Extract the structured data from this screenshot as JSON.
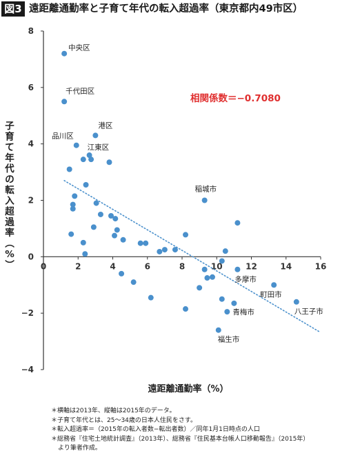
{
  "header": {
    "figure_label": "図3",
    "title": "遠距離通勤率と子育て年代の転入超過率（東京都内49市区）"
  },
  "chart_data": {
    "type": "scatter",
    "xlabel": "遠距離通勤率（%）",
    "ylabel": "子育て年代の転入超過率（%）",
    "xlim": [
      0,
      16
    ],
    "ylim": [
      -4,
      8
    ],
    "x_ticks": [
      0,
      2,
      4,
      6,
      8,
      10,
      12,
      14,
      16
    ],
    "y_ticks": [
      -4,
      -2,
      0,
      2,
      4,
      6,
      8
    ],
    "x_tick_labels": [
      "0",
      "2",
      "4",
      "6",
      "8",
      "10",
      "12",
      "14",
      "16"
    ],
    "y_tick_labels": [
      "−4",
      "−2",
      "0",
      "2",
      "4",
      "6",
      "8"
    ],
    "grid": false,
    "correlation_text": "相関係数＝−0.7080",
    "point_color": "#4a90cc",
    "trend_color": "#4a90cc",
    "correlation_color": "#e03030",
    "trendline": {
      "x": [
        1.2,
        15.9
      ],
      "y": [
        2.7,
        -2.65
      ],
      "style": "dotted"
    },
    "points": [
      {
        "x": 1.2,
        "y": 7.2,
        "label": "中央区"
      },
      {
        "x": 1.2,
        "y": 5.5,
        "label": "千代田区"
      },
      {
        "x": 3.0,
        "y": 4.3,
        "label": "港区"
      },
      {
        "x": 1.9,
        "y": 3.95,
        "label": "品川区"
      },
      {
        "x": 2.65,
        "y": 3.6,
        "label": "江東区"
      },
      {
        "x": 9.3,
        "y": 2.0,
        "label": "稲城市"
      },
      {
        "x": 11.2,
        "y": -0.45,
        "label": "多摩市"
      },
      {
        "x": 13.3,
        "y": -1.0,
        "label": "町田市"
      },
      {
        "x": 14.6,
        "y": -1.6,
        "label": "八王子市"
      },
      {
        "x": 11.0,
        "y": -1.65,
        "label": "青梅市"
      },
      {
        "x": 10.1,
        "y": -2.6,
        "label": "福生市"
      },
      {
        "x": 2.3,
        "y": 3.45,
        "label": ""
      },
      {
        "x": 2.75,
        "y": 3.45,
        "label": ""
      },
      {
        "x": 3.8,
        "y": 3.35,
        "label": ""
      },
      {
        "x": 1.5,
        "y": 3.1,
        "label": ""
      },
      {
        "x": 2.45,
        "y": 2.55,
        "label": ""
      },
      {
        "x": 1.8,
        "y": 2.15,
        "label": ""
      },
      {
        "x": 3.05,
        "y": 1.9,
        "label": ""
      },
      {
        "x": 1.7,
        "y": 1.85,
        "label": ""
      },
      {
        "x": 1.7,
        "y": 1.7,
        "label": ""
      },
      {
        "x": 3.3,
        "y": 1.5,
        "label": ""
      },
      {
        "x": 3.9,
        "y": 1.45,
        "label": ""
      },
      {
        "x": 4.15,
        "y": 1.35,
        "label": ""
      },
      {
        "x": 11.2,
        "y": 1.2,
        "label": ""
      },
      {
        "x": 2.9,
        "y": 1.05,
        "label": ""
      },
      {
        "x": 4.25,
        "y": 0.95,
        "label": ""
      },
      {
        "x": 1.6,
        "y": 0.8,
        "label": ""
      },
      {
        "x": 4.1,
        "y": 0.75,
        "label": ""
      },
      {
        "x": 8.2,
        "y": 0.78,
        "label": ""
      },
      {
        "x": 4.6,
        "y": 0.6,
        "label": ""
      },
      {
        "x": 2.3,
        "y": 0.5,
        "label": ""
      },
      {
        "x": 5.6,
        "y": 0.48,
        "label": ""
      },
      {
        "x": 5.9,
        "y": 0.48,
        "label": ""
      },
      {
        "x": 7.0,
        "y": 0.25,
        "label": ""
      },
      {
        "x": 7.6,
        "y": 0.25,
        "label": ""
      },
      {
        "x": 10.5,
        "y": 0.2,
        "label": ""
      },
      {
        "x": 6.7,
        "y": 0.18,
        "label": ""
      },
      {
        "x": 2.4,
        "y": 0.1,
        "label": ""
      },
      {
        "x": 10.3,
        "y": -0.15,
        "label": ""
      },
      {
        "x": 9.3,
        "y": -0.45,
        "label": ""
      },
      {
        "x": 4.5,
        "y": -0.6,
        "label": ""
      },
      {
        "x": 9.75,
        "y": -0.72,
        "label": ""
      },
      {
        "x": 9.45,
        "y": -0.75,
        "label": ""
      },
      {
        "x": 5.2,
        "y": -0.9,
        "label": ""
      },
      {
        "x": 9.0,
        "y": -1.1,
        "label": ""
      },
      {
        "x": 6.2,
        "y": -1.45,
        "label": ""
      },
      {
        "x": 10.3,
        "y": -1.5,
        "label": ""
      },
      {
        "x": 8.2,
        "y": -1.85,
        "label": ""
      },
      {
        "x": 10.6,
        "y": -1.95,
        "label": ""
      }
    ]
  },
  "notes": [
    "＊横軸は2013年、縦軸は2015年のデータ。",
    "＊子育て年代とは、25〜34歳の日本人住民をさす。",
    "＊転入超過率＝（2015年の転入者数−転出者数）／同年1月1日時点の人口",
    "＊総務省『住宅土地統計調査』（2013年）、総務省『住民基本台帳人口移動報告』（2015年）",
    "より筆者作成。"
  ]
}
